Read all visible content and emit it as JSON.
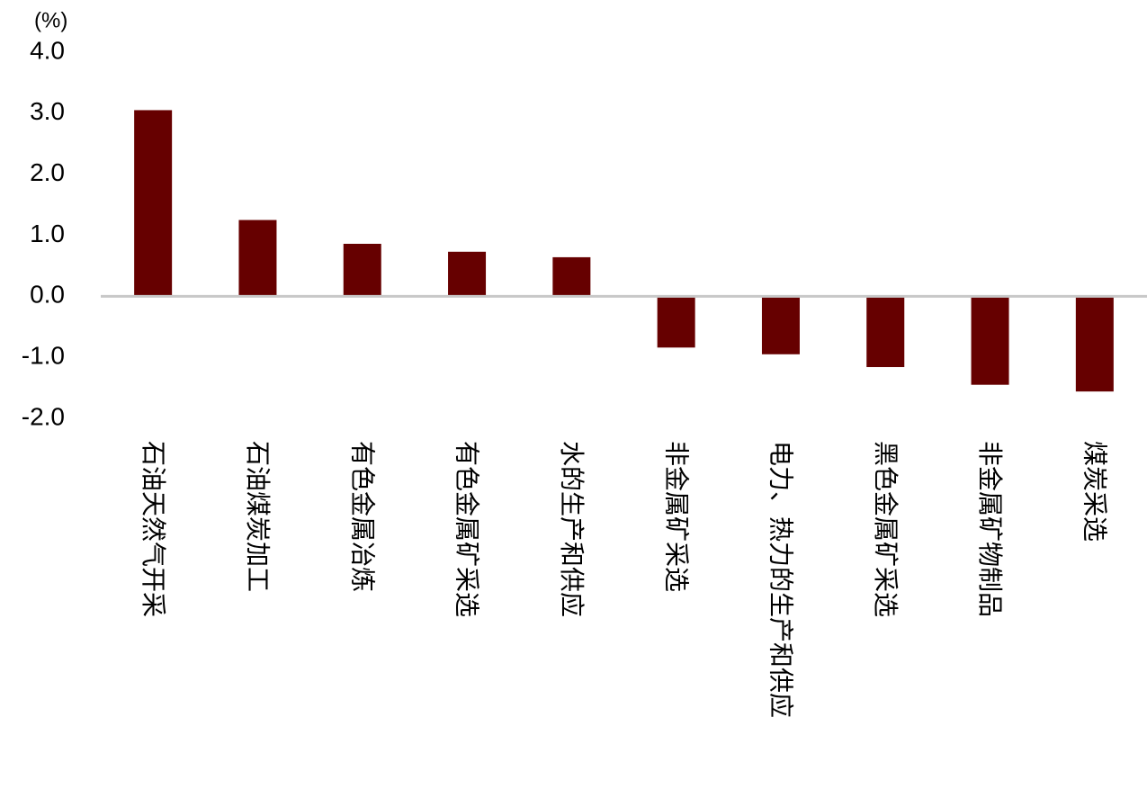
{
  "chart_data": {
    "type": "bar",
    "y_label": "(%)",
    "categories": [
      "石油天然气开采",
      "石油煤炭加工",
      "有色金属冶炼",
      "有色金属矿采选",
      "水的生产和供应",
      "非金属矿采选",
      "电力、热力的生产和供应",
      "黑色金属矿采选",
      "非金属矿物制品",
      "煤炭采选"
    ],
    "values": [
      3.05,
      1.25,
      0.86,
      0.73,
      0.64,
      -0.84,
      -0.95,
      -1.16,
      -1.45,
      -1.56
    ],
    "color": "#660000",
    "ylim": [
      -2,
      4
    ],
    "yticks": [
      {
        "value": -2,
        "label": "-2.0"
      },
      {
        "value": -1,
        "label": "-1.0"
      },
      {
        "value": 0,
        "label": "0.0"
      },
      {
        "value": 1,
        "label": "1.0"
      },
      {
        "value": 2,
        "label": "2.0"
      },
      {
        "value": 3,
        "label": "3.0"
      },
      {
        "value": 4,
        "label": "4.0"
      }
    ],
    "grid": false
  }
}
